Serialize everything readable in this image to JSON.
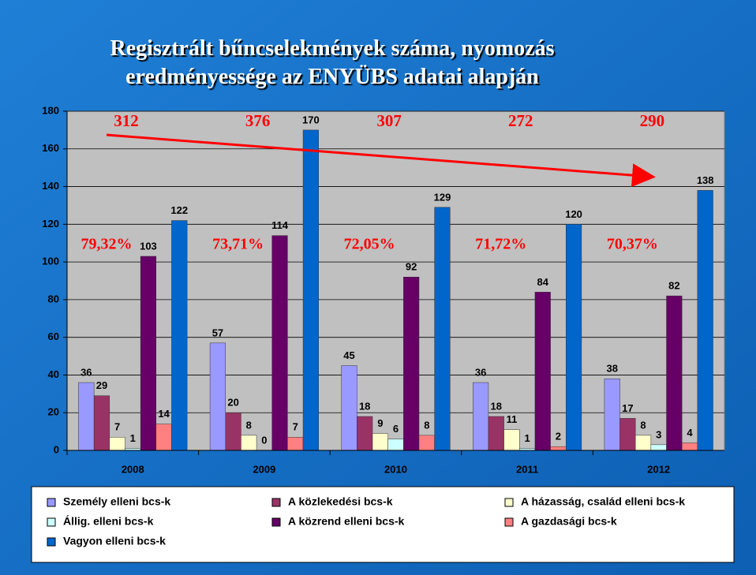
{
  "chart_data": {
    "type": "bar",
    "title": "Regisztrált bűncselekmények száma, nyomozás eredményessége az ENYÜBS adatai alapján",
    "categories": [
      "2008",
      "2009",
      "2010",
      "2011",
      "2012"
    ],
    "series": [
      {
        "name": "Személy elleni bcs-k",
        "color": "#9999ff",
        "values": [
          36,
          57,
          45,
          36,
          38
        ]
      },
      {
        "name": "A közlekedési bcs-k",
        "color": "#993366",
        "values": [
          29,
          20,
          18,
          18,
          17
        ]
      },
      {
        "name": "A házasság, család elleni bcs-k",
        "color": "#ffffcc",
        "values": [
          7,
          8,
          9,
          11,
          8
        ]
      },
      {
        "name": "Állig. elleni bcs-k",
        "color": "#ccffff",
        "values": [
          1,
          0,
          6,
          1,
          3
        ]
      },
      {
        "name": "A közrend elleni bcs-k",
        "color": "#660066",
        "values": [
          103,
          114,
          92,
          84,
          82
        ]
      },
      {
        "name": "A gazdasági bcs-k",
        "color": "#ff8080",
        "values": [
          14,
          7,
          8,
          2,
          4
        ]
      },
      {
        "name": "Vagyon elleni bcs-k",
        "color": "#0066cc",
        "values": [
          122,
          170,
          129,
          120,
          138
        ]
      }
    ],
    "annotations": {
      "totals": [
        "312",
        "376",
        "307",
        "272",
        "290"
      ],
      "rates": [
        "79,32%",
        "73,71%",
        "72,05%",
        "71,72%",
        "70,37%"
      ]
    },
    "ylim": [
      0,
      180
    ],
    "yticks": [
      0,
      20,
      40,
      60,
      80,
      100,
      120,
      140,
      160,
      180
    ],
    "grid": true,
    "legend": "bottom"
  }
}
